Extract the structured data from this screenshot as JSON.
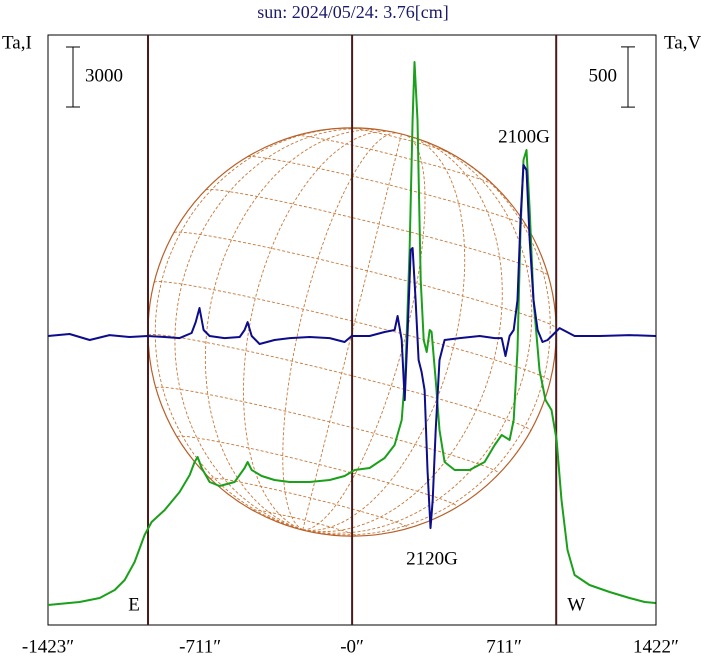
{
  "chart_data": {
    "type": "line",
    "title": "sun: 2024/05/24: 3.76[cm]",
    "y_label": "Ta,I",
    "y2_label": "Ta,V",
    "xlim": [
      -1423,
      1422
    ],
    "xticks": [
      {
        "value": -1423,
        "label": "-1423″"
      },
      {
        "value": -711,
        "label": "-711″"
      },
      {
        "value": 0,
        "label": "-0″"
      },
      {
        "value": 711,
        "label": "711″"
      },
      {
        "value": 1422,
        "label": "1422″"
      }
    ],
    "ylim": [
      -1000,
      28500
    ],
    "y2lim": [
      -2400,
      2500
    ],
    "scale_bars": [
      {
        "value": 3000,
        "axis": "y"
      },
      {
        "value": 500,
        "axis": "y2"
      }
    ],
    "markers": [
      {
        "x": -955,
        "label": "E"
      },
      {
        "x": 0
      },
      {
        "x": 955,
        "label": "W"
      }
    ],
    "annotations": [
      "2100G",
      "2120G"
    ],
    "series": [
      {
        "name": "Ta,I",
        "color": "#1aa01a",
        "x": [
          -1423,
          -1275,
          -1181,
          -1111,
          -1064,
          -1018,
          -971,
          -938,
          -877,
          -807,
          -760,
          -737,
          -723,
          -704,
          -667,
          -620,
          -550,
          -503,
          -489,
          -470,
          -423,
          -363,
          -292,
          -199,
          -105,
          -35,
          12,
          82,
          152,
          199,
          232,
          250,
          269,
          283,
          292,
          306,
          321,
          335,
          349,
          363,
          372,
          391,
          409,
          433,
          480,
          550,
          620,
          667,
          700,
          737,
          756,
          774,
          788,
          802,
          816,
          831,
          849,
          877,
          905,
          933,
          957,
          980,
          1008,
          1041,
          1111,
          1205,
          1298,
          1369,
          1420
        ],
        "values": [
          0,
          150,
          350,
          750,
          1250,
          2150,
          3500,
          4150,
          4750,
          5650,
          6500,
          7150,
          7400,
          6850,
          6150,
          5950,
          6150,
          6850,
          7150,
          6750,
          6450,
          6250,
          6150,
          6150,
          6250,
          6450,
          6750,
          6850,
          7350,
          8000,
          9250,
          11750,
          17750,
          24250,
          27150,
          24250,
          16250,
          13250,
          12650,
          13750,
          13650,
          11250,
          8750,
          7150,
          6750,
          6750,
          7150,
          8000,
          8500,
          8250,
          9250,
          12750,
          18750,
          22250,
          22750,
          19750,
          15250,
          11750,
          10250,
          9750,
          8250,
          5250,
          2750,
          1500,
          1000,
          650,
          350,
          150,
          100
        ]
      },
      {
        "name": "Ta,V",
        "color": "#0c0c8c",
        "axis": "y2",
        "x": [
          -1423,
          -1322,
          -1228,
          -1135,
          -1041,
          -957,
          -877,
          -807,
          -751,
          -732,
          -714,
          -695,
          -667,
          -597,
          -526,
          -503,
          -489,
          -470,
          -433,
          -363,
          -292,
          -199,
          -105,
          -35,
          -2,
          82,
          152,
          199,
          213,
          232,
          246,
          260,
          274,
          283,
          297,
          311,
          325,
          339,
          353,
          367,
          377,
          391,
          409,
          433,
          503,
          597,
          667,
          700,
          718,
          737,
          756,
          774,
          788,
          802,
          816,
          831,
          849,
          868,
          891,
          915,
          948,
          971,
          1041,
          1158,
          1298,
          1420
        ],
        "values": [
          0,
          17,
          -33,
          8,
          -8,
          0,
          -8,
          -17,
          25,
          116,
          233,
          50,
          0,
          -17,
          -8,
          50,
          116,
          0,
          -66,
          -33,
          -17,
          -8,
          -17,
          -50,
          0,
          0,
          33,
          50,
          166,
          -33,
          -532,
          50,
          714,
          731,
          299,
          -199,
          -299,
          -449,
          -1113,
          -1595,
          -1362,
          -781,
          -199,
          -33,
          -17,
          0,
          -17,
          -17,
          -166,
          0,
          50,
          299,
          963,
          1420,
          1378,
          797,
          299,
          50,
          -50,
          -33,
          25,
          66,
          0,
          0,
          8,
          0
        ]
      }
    ]
  }
}
